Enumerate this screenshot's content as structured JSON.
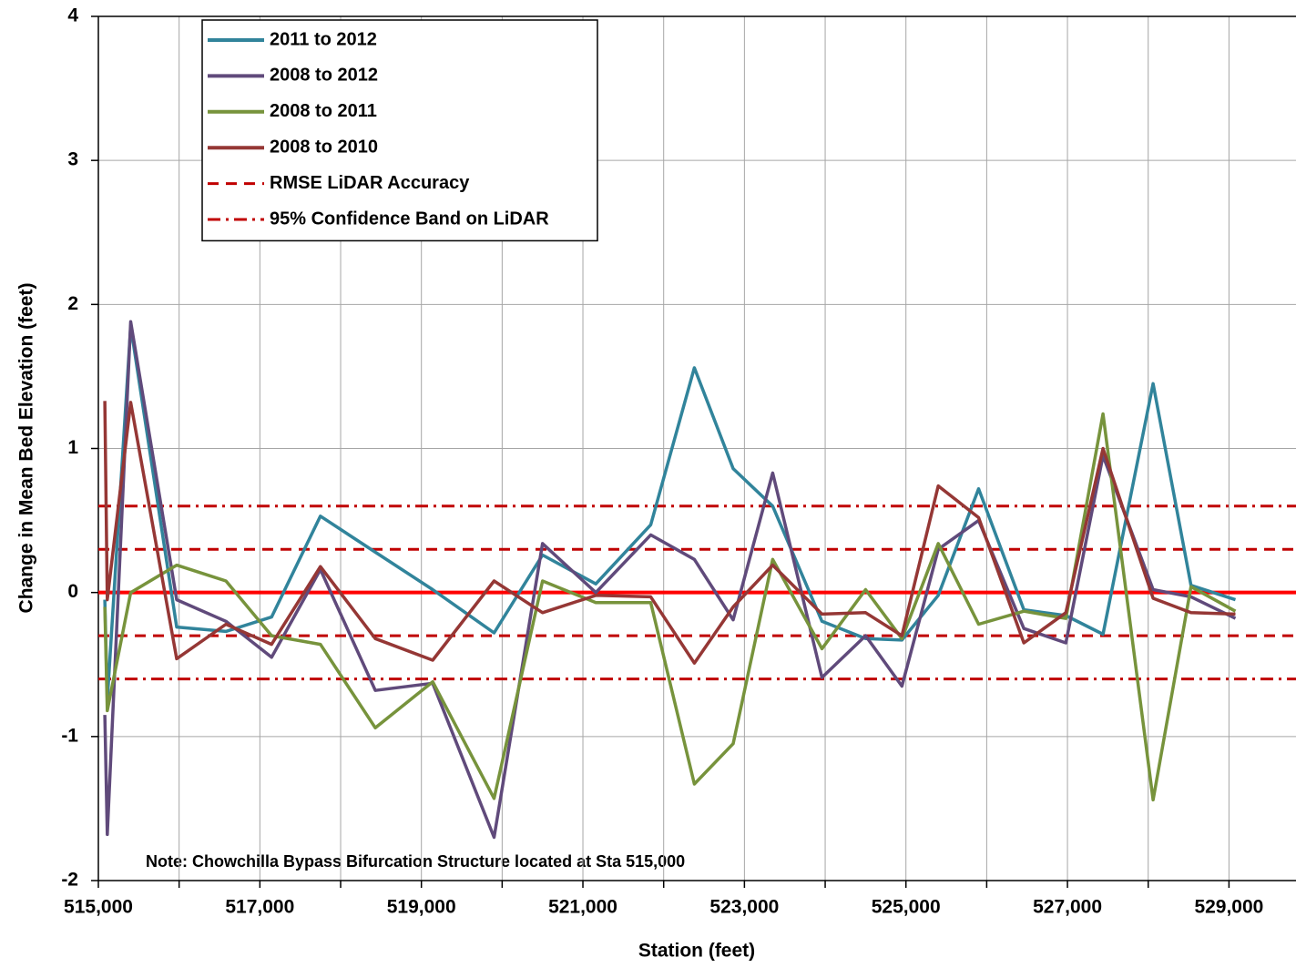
{
  "chart_data": {
    "type": "line",
    "xlabel": "Station (feet)",
    "ylabel": "Change in Mean Bed Elevation (feet)",
    "annotation": "Note:  Chowchilla Bypass Bifurcation Structure located at Sta 515,000",
    "x": [
      515080,
      515110,
      515400,
      515970,
      516580,
      517145,
      517750,
      518430,
      519140,
      519900,
      520500,
      521160,
      521840,
      522380,
      522860,
      523350,
      523960,
      524500,
      524950,
      525400,
      525900,
      526460,
      526980,
      527440,
      528060,
      528530,
      529080
    ],
    "series": [
      {
        "name": "2011 to 2012",
        "color": "#31849b",
        "values": [
          -0.05,
          -0.75,
          1.85,
          -0.24,
          -0.27,
          -0.17,
          0.53,
          0.28,
          0.02,
          -0.28,
          0.26,
          0.06,
          0.47,
          1.56,
          0.86,
          0.6,
          -0.2,
          -0.32,
          -0.33,
          -0.02,
          0.72,
          -0.12,
          -0.16,
          -0.29,
          1.45,
          0.05,
          -0.05
        ]
      },
      {
        "name": "2008 to 2012",
        "color": "#604a7b",
        "values": [
          -0.85,
          -1.68,
          1.88,
          -0.05,
          -0.2,
          -0.45,
          0.16,
          -0.68,
          -0.63,
          -1.7,
          0.34,
          0.0,
          0.4,
          0.23,
          -0.19,
          0.83,
          -0.59,
          -0.3,
          -0.65,
          0.3,
          0.5,
          -0.25,
          -0.35,
          0.95,
          0.02,
          -0.03,
          -0.18
        ]
      },
      {
        "name": "2008 to 2011",
        "color": "#77933c",
        "values": [
          -0.1,
          -0.82,
          0.0,
          0.19,
          0.08,
          -0.3,
          -0.36,
          -0.94,
          -0.62,
          -1.43,
          0.08,
          -0.07,
          -0.07,
          -1.33,
          -1.05,
          0.23,
          -0.39,
          0.02,
          -0.32,
          0.34,
          -0.22,
          -0.13,
          -0.18,
          1.24,
          -1.44,
          0.04,
          -0.13
        ]
      },
      {
        "name": "2008 to 2010",
        "color": "#953735",
        "values": [
          1.33,
          -0.05,
          1.32,
          -0.46,
          -0.22,
          -0.36,
          0.18,
          -0.32,
          -0.47,
          0.08,
          -0.14,
          -0.02,
          -0.03,
          -0.49,
          -0.1,
          0.19,
          -0.15,
          -0.14,
          -0.3,
          0.74,
          0.52,
          -0.35,
          -0.14,
          1.0,
          -0.04,
          -0.14,
          -0.15
        ]
      }
    ],
    "reference_lines": [
      {
        "name": "RMSE LiDAR Accuracy",
        "color": "#c00000",
        "style": "dashed",
        "values": [
          0.3,
          -0.3
        ]
      },
      {
        "name": "95% Confidence Band on LiDAR",
        "color": "#c00000",
        "style": "dashdot",
        "values": [
          0.6,
          -0.6
        ]
      }
    ],
    "baseline": {
      "value": 0,
      "color": "#ff0000"
    },
    "xlim": [
      515000,
      529830
    ],
    "xticks": [
      {
        "value": 515000,
        "label": "515,000"
      },
      {
        "value": 517000,
        "label": "517,000"
      },
      {
        "value": 519000,
        "label": "519,000"
      },
      {
        "value": 521000,
        "label": "521,000"
      },
      {
        "value": 523000,
        "label": "523,000"
      },
      {
        "value": 525000,
        "label": "525,000"
      },
      {
        "value": 527000,
        "label": "527,000"
      },
      {
        "value": 529000,
        "label": "529,000"
      }
    ],
    "xgrid_minor": [
      516000,
      518000,
      520000,
      522000,
      524000,
      526000,
      528000
    ],
    "ylim": [
      -2,
      4
    ],
    "yticks": [
      -2,
      -1,
      0,
      1,
      2,
      3,
      4
    ],
    "grid": true,
    "legend": "top-left"
  }
}
